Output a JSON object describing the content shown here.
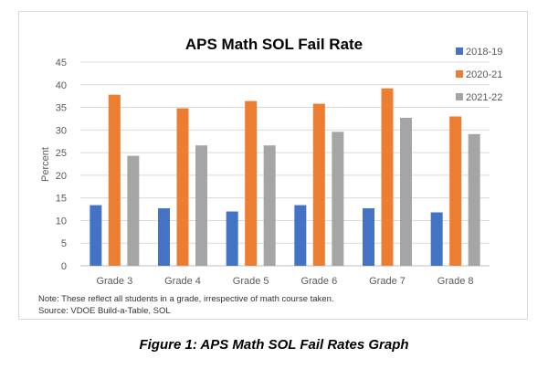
{
  "chart_data": {
    "type": "bar",
    "title": "APS Math SOL Fail Rate",
    "ylabel": "Percent",
    "xlabel": "",
    "ylim": [
      0,
      45
    ],
    "yticks": [
      0,
      5,
      10,
      15,
      20,
      25,
      30,
      35,
      40,
      45
    ],
    "grid": true,
    "legend_position": "right",
    "categories": [
      "Grade 3",
      "Grade 4",
      "Grade 5",
      "Grade 6",
      "Grade 7",
      "Grade 8"
    ],
    "series": [
      {
        "name": "2018-19",
        "color": "#4472c4",
        "values": [
          13.4,
          12.7,
          12.0,
          13.4,
          12.7,
          11.8
        ]
      },
      {
        "name": "2020-21",
        "color": "#ed7d31",
        "values": [
          37.8,
          34.8,
          36.4,
          35.8,
          39.2,
          33.0
        ]
      },
      {
        "name": "2021-22",
        "color": "#a5a5a5",
        "values": [
          24.3,
          26.6,
          26.6,
          29.6,
          32.7,
          29.1
        ]
      }
    ]
  },
  "notes": {
    "line1": "Note: These reflect all students in a grade, irrespective of math course taken.",
    "line2": "Source: VDOE Build-a-Table, SOL"
  },
  "caption": "Figure 1: APS Math SOL Fail Rates Graph"
}
